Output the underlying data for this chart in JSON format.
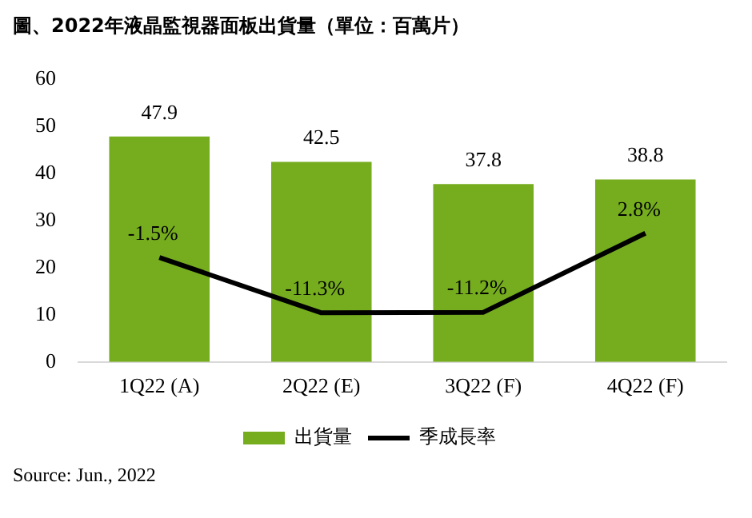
{
  "chart_data": {
    "type": "bar",
    "title": "圖、2022年液晶監視器面板出貨量（單位：百萬片）",
    "categories": [
      "1Q22 (A)",
      "2Q22 (E)",
      "3Q22 (F)",
      "4Q22 (F)"
    ],
    "series": [
      {
        "name": "出貨量",
        "color": "#76ad1f",
        "values": [
          47.9,
          42.5,
          37.8,
          38.8
        ],
        "value_labels": [
          "47.9",
          "42.5",
          "37.8",
          "38.8"
        ]
      },
      {
        "name": "季成長率",
        "type": "line",
        "axis": "y2",
        "color": "#000000",
        "values": [
          -1.5,
          -11.3,
          -11.2,
          2.8
        ],
        "value_labels": [
          "-1.5%",
          "-11.3%",
          "-11.2%",
          "2.8%"
        ]
      }
    ],
    "ylim": [
      0,
      60
    ],
    "yticks": [
      0,
      10,
      20,
      30,
      40,
      50,
      60
    ],
    "grid": false,
    "legend": "bottom",
    "marker": "none",
    "line_style": "solid",
    "annotations": [
      "Source: Jun., 2022"
    ]
  }
}
